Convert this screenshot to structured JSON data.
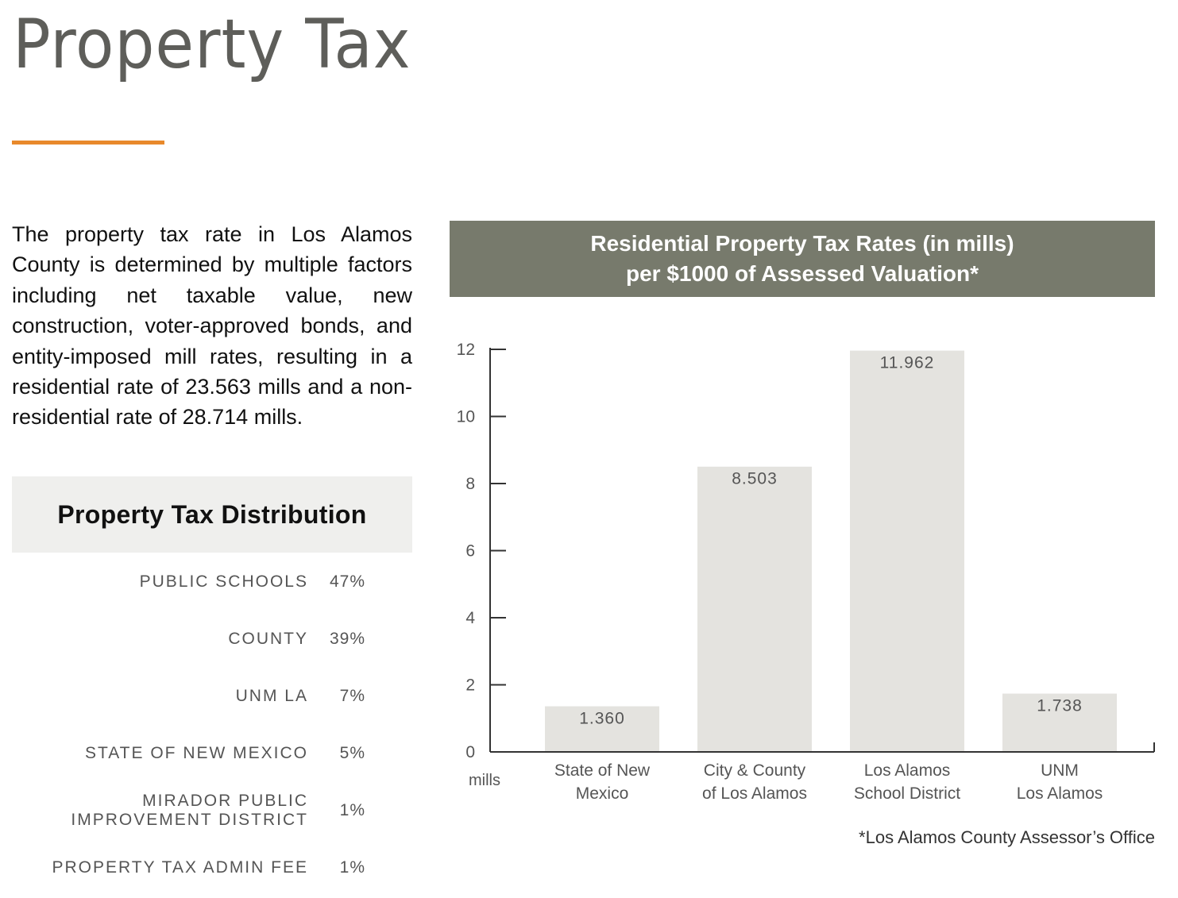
{
  "page": {
    "title": "Property Tax",
    "accent_color": "#e8892b",
    "intro_text": "The property tax rate in Los Alamos County is determined by multiple factors including net taxable value, new construction, voter-approved bonds, and entity-imposed mill rates, resulting in a residential rate of 23.563 mills and a non-residential rate of 28.714 mills."
  },
  "distribution": {
    "title": "Property Tax Distribution",
    "items": [
      {
        "label": "PUBLIC SCHOOLS",
        "pct": "47%"
      },
      {
        "label": "COUNTY",
        "pct": "39%"
      },
      {
        "label": "UNM LA",
        "pct": "7%"
      },
      {
        "label": "STATE OF NEW MEXICO",
        "pct": "5%"
      },
      {
        "label_lines": [
          "MIRADOR PUBLIC",
          "IMPROVEMENT DISTRICT"
        ],
        "pct": "1%"
      },
      {
        "label": "PROPERTY TAX ADMIN FEE",
        "pct": "1%"
      }
    ]
  },
  "chart_data": {
    "type": "bar",
    "title_lines": [
      "Residential Property Tax Rates (in mills)",
      "per $1000 of Assessed Valuation*"
    ],
    "categories": [
      [
        "State of New",
        "Mexico"
      ],
      [
        "City & County",
        "of Los Alamos"
      ],
      [
        "Los Alamos",
        "School District"
      ],
      [
        "UNM",
        "Los Alamos"
      ]
    ],
    "values": [
      1.36,
      8.503,
      11.962,
      1.738
    ],
    "value_labels": [
      "1.360",
      "8.503",
      "11.962",
      "1.738"
    ],
    "xlabel": "",
    "ylabel": "mills",
    "ylim": [
      0,
      12
    ],
    "yticks": [
      0,
      2,
      4,
      6,
      8,
      10,
      12
    ],
    "grid": false,
    "bar_color": "#e4e3df",
    "header_color": "#777a6c",
    "footnote": "*Los Alamos County Assessor’s Office"
  }
}
